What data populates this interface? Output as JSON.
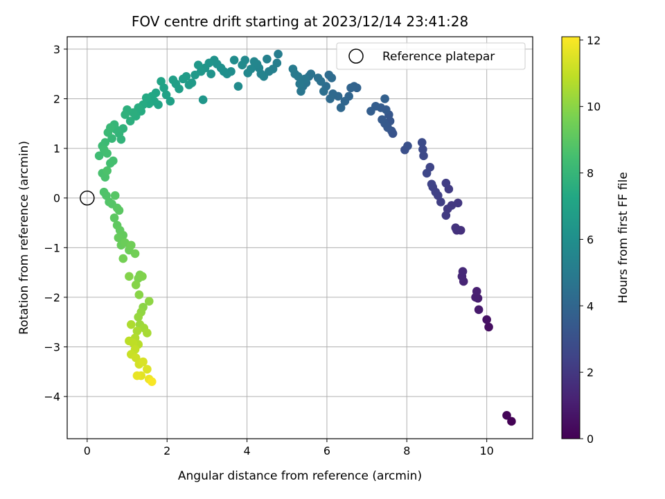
{
  "chart_data": {
    "type": "scatter",
    "title": "FOV centre drift starting at 2023/12/14 23:41:28",
    "xlabel": "Angular distance from reference (arcmin)",
    "ylabel": "Rotation from reference (arcmin)",
    "xlim": [
      -0.5,
      11.15
    ],
    "ylim": [
      -4.85,
      3.25
    ],
    "xticks": [
      0,
      2,
      4,
      6,
      8,
      10
    ],
    "yticks": [
      -4,
      -3,
      -2,
      -1,
      0,
      1,
      2,
      3
    ],
    "grid": true,
    "legend": {
      "placement": "top-right",
      "entries": [
        "Reference platepar"
      ]
    },
    "reference_point": {
      "name": "Reference platepar",
      "x": 0,
      "y": 0
    },
    "colorbar": {
      "label": "Hours from first FF file",
      "range": [
        0,
        12.1
      ],
      "ticks": [
        0,
        2,
        4,
        6,
        8,
        10,
        12
      ],
      "colormap": "viridis"
    },
    "points": [
      [
        10.62,
        -4.5,
        0.05
      ],
      [
        10.5,
        -4.38,
        0.15
      ],
      [
        10.05,
        -2.6,
        0.5
      ],
      [
        10.0,
        -2.45,
        0.6
      ],
      [
        9.8,
        -2.25,
        0.9
      ],
      [
        9.78,
        -2.02,
        1.0
      ],
      [
        9.72,
        -2.0,
        1.05
      ],
      [
        9.75,
        -1.88,
        1.1
      ],
      [
        9.42,
        -1.68,
        1.3
      ],
      [
        9.38,
        -1.58,
        1.4
      ],
      [
        9.4,
        -1.48,
        1.45
      ],
      [
        9.35,
        -0.65,
        1.7
      ],
      [
        9.25,
        -0.65,
        1.75
      ],
      [
        9.22,
        -0.6,
        1.8
      ],
      [
        9.28,
        -0.1,
        1.95
      ],
      [
        9.12,
        -0.15,
        2.0
      ],
      [
        9.02,
        -0.22,
        2.05
      ],
      [
        8.98,
        -0.35,
        2.1
      ],
      [
        9.05,
        0.18,
        2.15
      ],
      [
        8.98,
        0.3,
        2.2
      ],
      [
        8.85,
        -0.08,
        2.25
      ],
      [
        8.78,
        0.05,
        2.3
      ],
      [
        8.72,
        0.12,
        2.35
      ],
      [
        8.65,
        0.22,
        2.4
      ],
      [
        8.62,
        0.28,
        2.45
      ],
      [
        8.58,
        0.62,
        2.5
      ],
      [
        8.5,
        0.5,
        2.6
      ],
      [
        8.42,
        0.85,
        2.7
      ],
      [
        8.4,
        0.98,
        2.75
      ],
      [
        8.38,
        1.12,
        2.8
      ],
      [
        7.95,
        0.97,
        2.95
      ],
      [
        8.02,
        1.05,
        3.0
      ],
      [
        7.65,
        1.3,
        3.15
      ],
      [
        7.62,
        1.35,
        3.2
      ],
      [
        7.58,
        1.55,
        3.25
      ],
      [
        7.55,
        1.68,
        3.3
      ],
      [
        7.52,
        1.42,
        3.35
      ],
      [
        7.45,
        1.5,
        3.4
      ],
      [
        7.38,
        1.58,
        3.45
      ],
      [
        7.48,
        1.78,
        3.5
      ],
      [
        7.35,
        1.82,
        3.55
      ],
      [
        7.22,
        1.85,
        3.6
      ],
      [
        7.1,
        1.75,
        3.65
      ],
      [
        7.45,
        2.0,
        3.7
      ],
      [
        6.75,
        2.22,
        3.8
      ],
      [
        6.68,
        2.25,
        3.85
      ],
      [
        6.6,
        2.22,
        3.9
      ],
      [
        6.55,
        2.05,
        3.95
      ],
      [
        6.45,
        1.95,
        4.0
      ],
      [
        6.35,
        1.82,
        4.05
      ],
      [
        6.28,
        2.05,
        4.1
      ],
      [
        6.15,
        2.1,
        4.15
      ],
      [
        6.08,
        2.0,
        4.2
      ],
      [
        6.12,
        2.42,
        4.25
      ],
      [
        6.05,
        2.48,
        4.3
      ],
      [
        5.98,
        2.25,
        4.35
      ],
      [
        5.92,
        2.15,
        4.4
      ],
      [
        5.85,
        2.35,
        4.45
      ],
      [
        5.78,
        2.42,
        4.5
      ],
      [
        5.55,
        2.45,
        4.55
      ],
      [
        5.6,
        2.5,
        4.6
      ],
      [
        5.48,
        2.32,
        4.65
      ],
      [
        5.4,
        2.25,
        4.7
      ],
      [
        5.35,
        2.15,
        4.75
      ],
      [
        5.45,
        2.4,
        4.8
      ],
      [
        5.32,
        2.3,
        4.85
      ],
      [
        5.28,
        2.45,
        4.9
      ],
      [
        5.2,
        2.5,
        4.95
      ],
      [
        5.15,
        2.6,
        5.0
      ],
      [
        4.78,
        2.9,
        5.1
      ],
      [
        4.75,
        2.72,
        5.15
      ],
      [
        4.65,
        2.6,
        5.2
      ],
      [
        4.55,
        2.55,
        5.25
      ],
      [
        4.5,
        2.8,
        5.3
      ],
      [
        4.42,
        2.45,
        5.35
      ],
      [
        4.35,
        2.5,
        5.4
      ],
      [
        4.3,
        2.62,
        5.45
      ],
      [
        4.25,
        2.7,
        5.5
      ],
      [
        4.18,
        2.75,
        5.55
      ],
      [
        4.1,
        2.6,
        5.6
      ],
      [
        4.02,
        2.52,
        5.65
      ],
      [
        3.95,
        2.78,
        5.7
      ],
      [
        3.88,
        2.68,
        5.75
      ],
      [
        3.78,
        2.25,
        5.8
      ],
      [
        3.68,
        2.78,
        5.85
      ],
      [
        3.6,
        2.55,
        5.9
      ],
      [
        3.5,
        2.5,
        5.95
      ],
      [
        3.42,
        2.55,
        6.0
      ],
      [
        3.35,
        2.62,
        6.05
      ],
      [
        3.25,
        2.7,
        6.1
      ],
      [
        3.18,
        2.78,
        6.15
      ],
      [
        3.1,
        2.5,
        6.2
      ],
      [
        3.05,
        2.72,
        6.25
      ],
      [
        2.95,
        2.62,
        6.3
      ],
      [
        2.9,
        1.98,
        6.35
      ],
      [
        2.85,
        2.55,
        6.4
      ],
      [
        2.78,
        2.68,
        6.45
      ],
      [
        2.7,
        2.48,
        6.5
      ],
      [
        2.62,
        2.32,
        6.55
      ],
      [
        2.55,
        2.28,
        6.6
      ],
      [
        2.48,
        2.45,
        6.65
      ],
      [
        2.4,
        2.4,
        6.7
      ],
      [
        2.3,
        2.2,
        6.75
      ],
      [
        2.22,
        2.3,
        6.8
      ],
      [
        2.15,
        2.38,
        6.85
      ],
      [
        2.08,
        1.95,
        6.9
      ],
      [
        1.98,
        2.08,
        6.95
      ],
      [
        1.92,
        2.22,
        7.0
      ],
      [
        1.85,
        2.35,
        7.05
      ],
      [
        1.78,
        1.88,
        7.1
      ],
      [
        1.72,
        2.12,
        7.15
      ],
      [
        1.68,
        1.95,
        7.2
      ],
      [
        1.62,
        2.05,
        7.25
      ],
      [
        1.55,
        1.9,
        7.3
      ],
      [
        1.48,
        2.02,
        7.35
      ],
      [
        1.4,
        1.88,
        7.4
      ],
      [
        1.35,
        1.75,
        7.45
      ],
      [
        1.28,
        1.82,
        7.5
      ],
      [
        1.22,
        1.65,
        7.55
      ],
      [
        1.15,
        1.72,
        7.6
      ],
      [
        1.08,
        1.55,
        7.65
      ],
      [
        1.0,
        1.78,
        7.7
      ],
      [
        0.95,
        1.68,
        7.75
      ],
      [
        0.9,
        1.4,
        7.8
      ],
      [
        0.85,
        1.18,
        7.85
      ],
      [
        0.8,
        1.3,
        7.9
      ],
      [
        0.72,
        1.38,
        7.95
      ],
      [
        0.68,
        1.48,
        8.0
      ],
      [
        0.62,
        1.2,
        8.05
      ],
      [
        0.58,
        1.42,
        8.1
      ],
      [
        0.52,
        1.32,
        8.15
      ],
      [
        0.45,
        1.12,
        8.2
      ],
      [
        0.38,
        1.05,
        8.25
      ],
      [
        0.3,
        0.85,
        8.3
      ],
      [
        0.42,
        0.98,
        8.35
      ],
      [
        0.5,
        0.9,
        8.4
      ],
      [
        0.58,
        0.7,
        8.45
      ],
      [
        0.65,
        0.75,
        8.5
      ],
      [
        0.38,
        0.5,
        8.55
      ],
      [
        0.45,
        0.42,
        8.6
      ],
      [
        0.5,
        0.55,
        8.65
      ],
      [
        0.42,
        0.12,
        8.7
      ],
      [
        0.48,
        0.05,
        8.75
      ],
      [
        0.55,
        -0.08,
        8.8
      ],
      [
        0.62,
        -0.12,
        8.85
      ],
      [
        0.7,
        0.05,
        8.9
      ],
      [
        0.75,
        -0.2,
        8.95
      ],
      [
        0.8,
        -0.25,
        9.0
      ],
      [
        0.68,
        -0.4,
        9.05
      ],
      [
        0.75,
        -0.55,
        9.1
      ],
      [
        0.82,
        -0.65,
        9.15
      ],
      [
        0.9,
        -0.75,
        9.2
      ],
      [
        0.78,
        -0.8,
        9.25
      ],
      [
        0.85,
        -0.95,
        9.3
      ],
      [
        0.95,
        -0.9,
        9.35
      ],
      [
        1.05,
        -1.05,
        9.4
      ],
      [
        1.1,
        -0.95,
        9.45
      ],
      [
        1.2,
        -1.12,
        9.5
      ],
      [
        0.9,
        -1.22,
        9.55
      ],
      [
        1.32,
        -1.55,
        9.7
      ],
      [
        1.28,
        -1.62,
        9.75
      ],
      [
        1.38,
        -1.58,
        9.8
      ],
      [
        1.05,
        -1.58,
        9.85
      ],
      [
        1.22,
        -1.75,
        9.9
      ],
      [
        1.3,
        -1.95,
        9.95
      ],
      [
        1.4,
        -2.2,
        10.0
      ],
      [
        1.55,
        -2.08,
        10.05
      ],
      [
        1.35,
        -2.3,
        10.1
      ],
      [
        1.28,
        -2.4,
        10.2
      ],
      [
        1.32,
        -2.55,
        10.3
      ],
      [
        1.42,
        -2.62,
        10.4
      ],
      [
        1.5,
        -2.72,
        10.5
      ],
      [
        1.25,
        -2.68,
        10.55
      ],
      [
        1.1,
        -2.55,
        10.6
      ],
      [
        1.2,
        -2.82,
        10.7
      ],
      [
        1.28,
        -2.95,
        10.8
      ],
      [
        1.05,
        -2.88,
        10.85
      ],
      [
        1.15,
        -2.92,
        10.9
      ],
      [
        1.2,
        -3.05,
        11.0
      ],
      [
        1.1,
        -3.15,
        11.1
      ],
      [
        1.22,
        -3.22,
        11.2
      ],
      [
        1.3,
        -3.35,
        11.3
      ],
      [
        1.4,
        -3.3,
        11.4
      ],
      [
        1.5,
        -3.45,
        11.5
      ],
      [
        1.35,
        -3.58,
        11.6
      ],
      [
        1.25,
        -3.58,
        11.7
      ],
      [
        1.55,
        -3.65,
        11.8
      ],
      [
        1.62,
        -3.7,
        12.0
      ]
    ]
  }
}
